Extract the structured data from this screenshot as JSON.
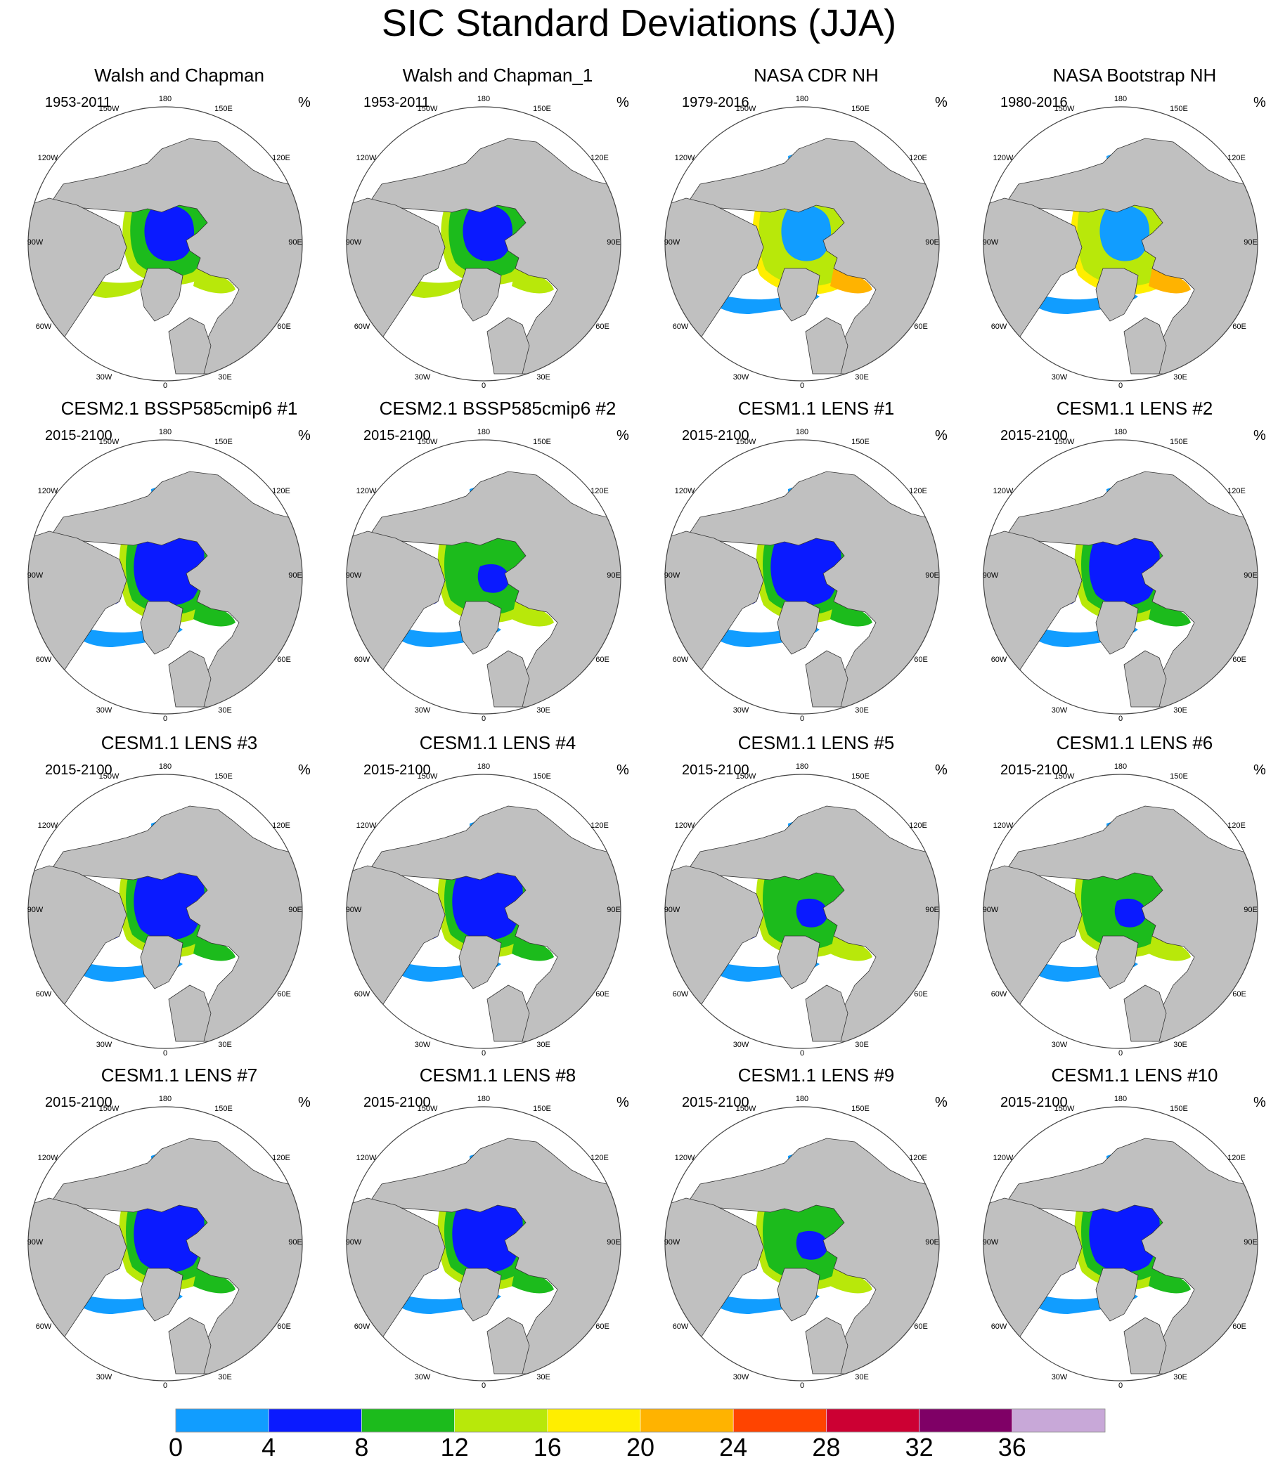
{
  "title": "SIC Standard Deviations (JJA)",
  "unit": "%",
  "longitude_labels": [
    "180",
    "150W",
    "150E",
    "120W",
    "120E",
    "90W",
    "90E",
    "60W",
    "60E",
    "30W",
    "30E",
    "0"
  ],
  "colors": {
    "land": "#c0c0c0",
    "ocean": "#ffffff",
    "outline": "#333333"
  },
  "colorbar": {
    "levels": [
      "0",
      "4",
      "8",
      "12",
      "16",
      "20",
      "24",
      "28",
      "32",
      "36"
    ],
    "colors": [
      "#119dff",
      "#0a1aff",
      "#1cbb1c",
      "#b8e80a",
      "#ffee00",
      "#ffb300",
      "#ff4400",
      "#cc0033",
      "#7f0066",
      "#c8a8d8"
    ]
  },
  "panels": [
    {
      "title": "Walsh and Chapman",
      "period": "1953-2011",
      "pattern": "obs-wc"
    },
    {
      "title": "Walsh and Chapman_1",
      "period": "1953-2011",
      "pattern": "obs-wc"
    },
    {
      "title": "NASA CDR NH",
      "period": "1979-2016",
      "pattern": "obs-nasa"
    },
    {
      "title": "NASA Bootstrap NH",
      "period": "1980-2016",
      "pattern": "obs-nasa"
    },
    {
      "title": "CESM2.1 BSSP585cmip6 #1",
      "period": "2015-2100",
      "pattern": "model"
    },
    {
      "title": "CESM2.1 BSSP585cmip6 #2",
      "period": "2015-2100",
      "pattern": "model-green"
    },
    {
      "title": "CESM1.1 LENS #1",
      "period": "2015-2100",
      "pattern": "model"
    },
    {
      "title": "CESM1.1 LENS #2",
      "period": "2015-2100",
      "pattern": "model"
    },
    {
      "title": "CESM1.1 LENS #3",
      "period": "2015-2100",
      "pattern": "model"
    },
    {
      "title": "CESM1.1 LENS #4",
      "period": "2015-2100",
      "pattern": "model"
    },
    {
      "title": "CESM1.1 LENS #5",
      "period": "2015-2100",
      "pattern": "model-green"
    },
    {
      "title": "CESM1.1 LENS #6",
      "period": "2015-2100",
      "pattern": "model-green"
    },
    {
      "title": "CESM1.1 LENS #7",
      "period": "2015-2100",
      "pattern": "model"
    },
    {
      "title": "CESM1.1 LENS #8",
      "period": "2015-2100",
      "pattern": "model"
    },
    {
      "title": "CESM1.1 LENS #9",
      "period": "2015-2100",
      "pattern": "model-green"
    },
    {
      "title": "CESM1.1 LENS #10",
      "period": "2015-2100",
      "pattern": "model"
    }
  ]
}
